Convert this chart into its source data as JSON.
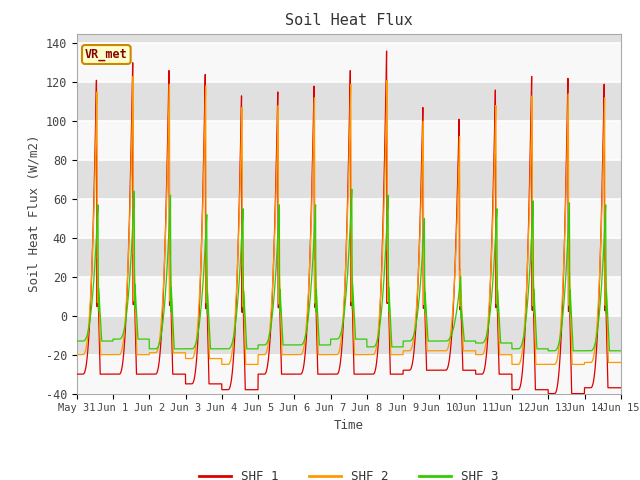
{
  "title": "Soil Heat Flux",
  "xlabel": "Time",
  "ylabel": "Soil Heat Flux (W/m2)",
  "ylim": [
    -40,
    145
  ],
  "n_days": 15,
  "bg_color": "#ffffff",
  "plot_bg": "#e0e0e0",
  "grid_color": "#f5f5f5",
  "shf1_color": "#dd0000",
  "shf2_color": "#ff9900",
  "shf3_color": "#33cc00",
  "legend_label": "VR_met",
  "series_labels": [
    "SHF 1",
    "SHF 2",
    "SHF 3"
  ],
  "xtick_labels": [
    "May 31",
    "Jun 1",
    "Jun 2",
    "Jun 3",
    "Jun 4",
    "Jun 5",
    "Jun 6",
    "Jun 7",
    "Jun 8",
    "Jun 9",
    "Jun 10",
    "Jun 11",
    "Jun 12",
    "Jun 13",
    "Jun 14",
    "Jun 15"
  ],
  "ytick_values": [
    -40,
    -20,
    0,
    20,
    40,
    60,
    80,
    100,
    120,
    140
  ],
  "peaks1": [
    121,
    130,
    126,
    124,
    113,
    115,
    118,
    126,
    136,
    107,
    101,
    116,
    123,
    122,
    119
  ],
  "peaks2": [
    115,
    123,
    119,
    118,
    107,
    108,
    112,
    119,
    121,
    100,
    92,
    108,
    113,
    114,
    112
  ],
  "peaks3": [
    57,
    64,
    62,
    52,
    55,
    57,
    57,
    65,
    62,
    50,
    20,
    55,
    59,
    58,
    57
  ],
  "trough1": [
    -30,
    -30,
    -30,
    -35,
    -38,
    -30,
    -30,
    -30,
    -30,
    -28,
    -28,
    -30,
    -38,
    -40,
    -37
  ],
  "trough2": [
    -20,
    -20,
    -19,
    -22,
    -25,
    -20,
    -20,
    -20,
    -20,
    -18,
    -18,
    -20,
    -25,
    -25,
    -24
  ],
  "trough3": [
    -13,
    -12,
    -17,
    -17,
    -17,
    -15,
    -15,
    -12,
    -16,
    -13,
    -13,
    -14,
    -17,
    -18,
    -18
  ],
  "peak_hour1": 13.0,
  "peak_hour2": 13.3,
  "peak_hour3": 14.0,
  "trough_hour": 4.0,
  "dt": 0.1
}
